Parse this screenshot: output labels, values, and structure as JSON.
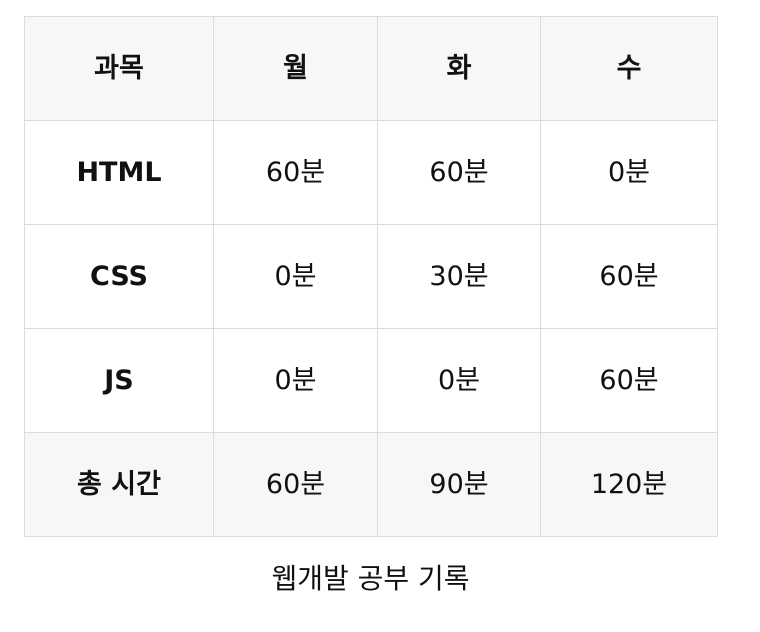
{
  "table": {
    "headers": [
      "과목",
      "월",
      "화",
      "수"
    ],
    "rows": [
      {
        "subject": "HTML",
        "cells": [
          "60분",
          "60분",
          "0분"
        ]
      },
      {
        "subject": "CSS",
        "cells": [
          "0분",
          "30분",
          "60분"
        ]
      },
      {
        "subject": "JS",
        "cells": [
          "0분",
          "0분",
          "60분"
        ]
      }
    ],
    "total": {
      "label": "총 시간",
      "cells": [
        "60분",
        "90분",
        "120분"
      ]
    }
  },
  "caption": "웹개발 공부 기록"
}
